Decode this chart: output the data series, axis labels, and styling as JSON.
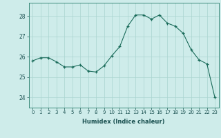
{
  "x": [
    0,
    1,
    2,
    3,
    4,
    5,
    6,
    7,
    8,
    9,
    10,
    11,
    12,
    13,
    14,
    15,
    16,
    17,
    18,
    19,
    20,
    21,
    22,
    23
  ],
  "y": [
    25.8,
    25.95,
    25.95,
    25.75,
    25.5,
    25.5,
    25.6,
    25.3,
    25.25,
    25.55,
    26.05,
    26.5,
    27.5,
    28.05,
    28.05,
    27.85,
    28.05,
    27.65,
    27.5,
    27.15,
    26.35,
    25.85,
    25.65,
    24.0
  ],
  "title": "",
  "xlabel": "Humidex (Indice chaleur)",
  "ylabel": "",
  "xlim": [
    -0.5,
    23.5
  ],
  "ylim": [
    23.5,
    28.65
  ],
  "yticks": [
    24,
    25,
    26,
    27,
    28
  ],
  "xticks": [
    0,
    1,
    2,
    3,
    4,
    5,
    6,
    7,
    8,
    9,
    10,
    11,
    12,
    13,
    14,
    15,
    16,
    17,
    18,
    19,
    20,
    21,
    22,
    23
  ],
  "line_color": "#1a6b5a",
  "marker_color": "#1a6b5a",
  "bg_color": "#ceecea",
  "grid_color": "#aad4d0",
  "axis_color": "#3a8a7a",
  "tick_color": "#1a5050",
  "label_color": "#1a5050"
}
